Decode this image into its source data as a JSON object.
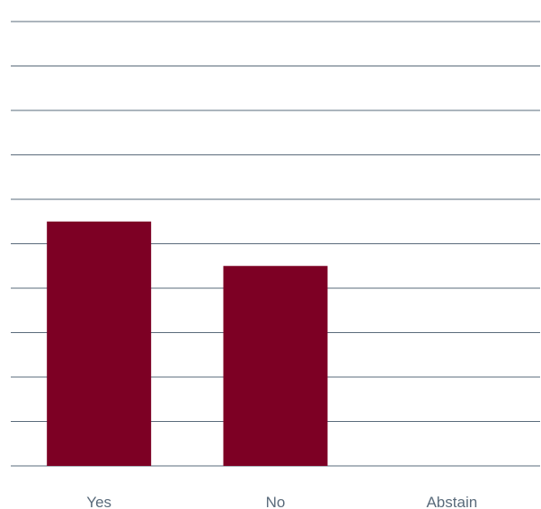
{
  "chart_data": {
    "type": "bar",
    "categories": [
      "Yes",
      "No",
      "Abstain"
    ],
    "values": [
      5.5,
      4.5,
      0
    ],
    "ylim": [
      0,
      10
    ],
    "grid": true,
    "bar_color": "#7d0024",
    "grid_color": "#5a6b7b",
    "label_color": "#5a6b7b"
  }
}
